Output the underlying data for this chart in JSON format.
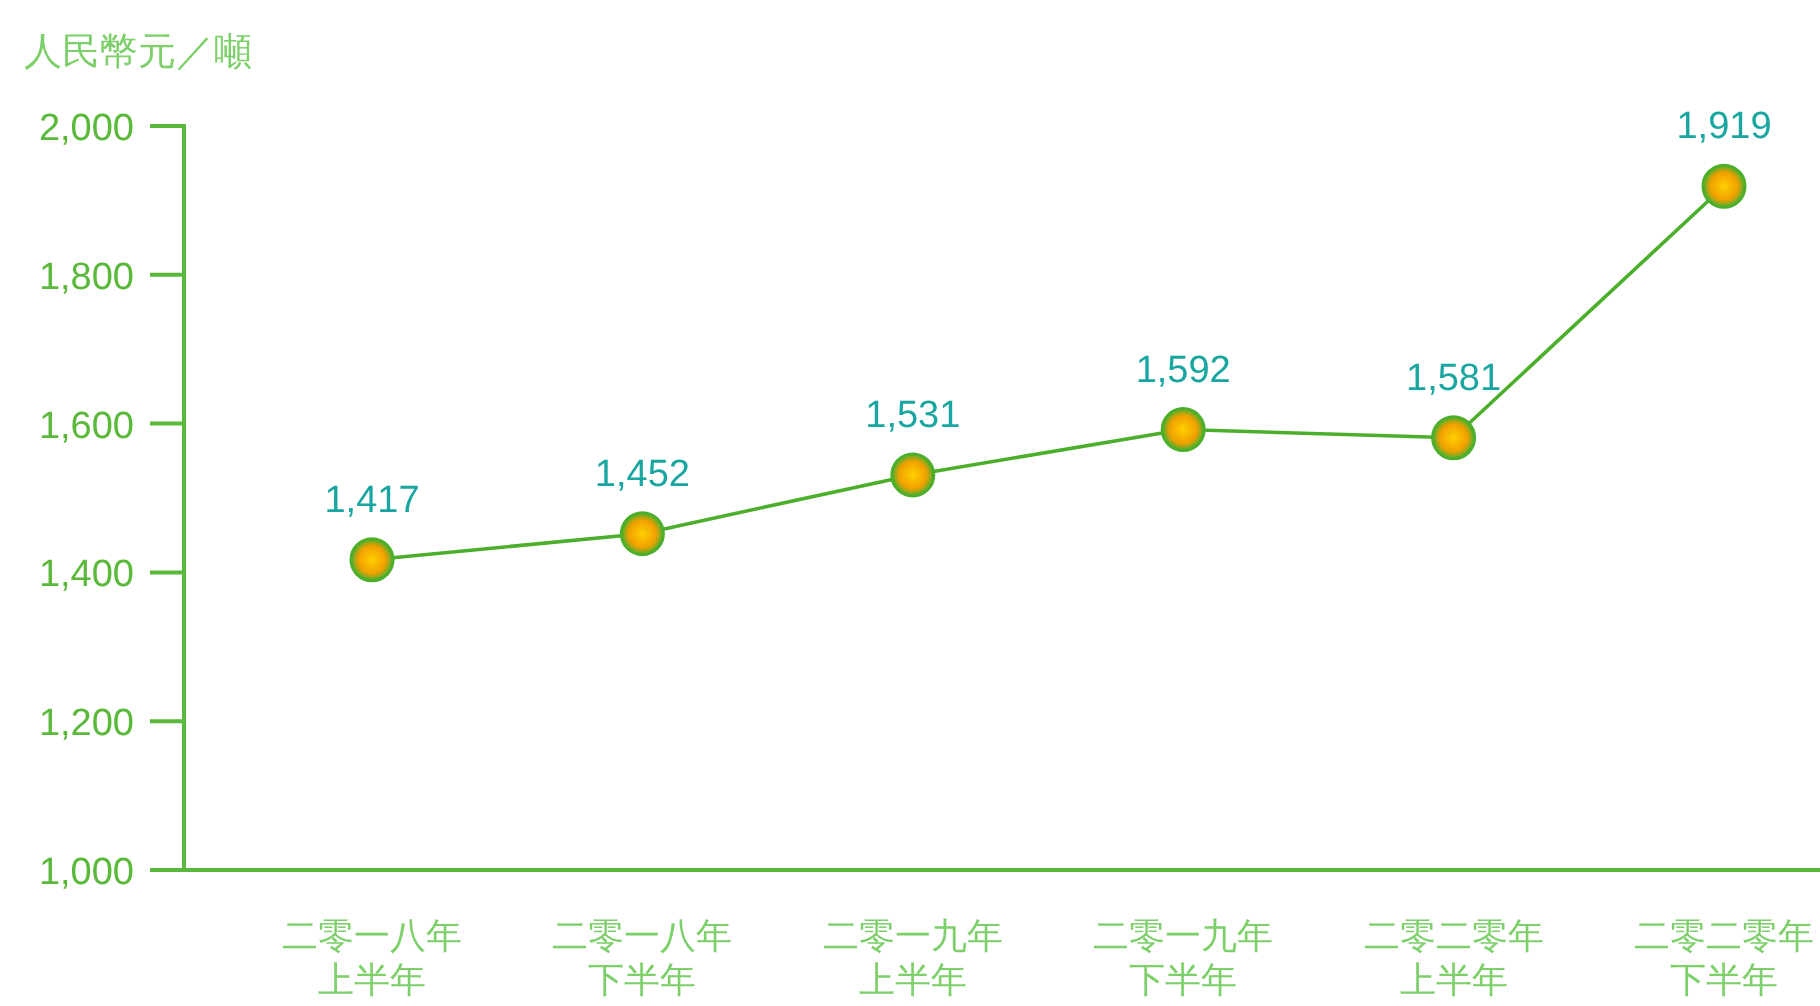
{
  "chart_data": {
    "type": "line",
    "ylabel": "人民幣元／噸",
    "categories": [
      "二零一八年上半年",
      "二零一八年下半年",
      "二零一九年上半年",
      "二零一九年下半年",
      "二零二零年上半年",
      "二零二零年下半年"
    ],
    "series": [
      {
        "color": "#4caf2c",
        "values": [
          1417,
          1452,
          1531,
          1592,
          1581,
          1919
        ],
        "value_labels": [
          "1,417",
          "1,452",
          "1,531",
          "1,592",
          "1,581",
          "1,919"
        ]
      }
    ],
    "ylim": [
      1000,
      2000
    ],
    "yticks": [
      {
        "value": 1000,
        "label": "1,000"
      },
      {
        "value": 1200,
        "label": "1,200"
      },
      {
        "value": 1400,
        "label": "1,400"
      },
      {
        "value": 1600,
        "label": "1,600"
      },
      {
        "value": 1800,
        "label": "1,800"
      },
      {
        "value": 2000,
        "label": "2,000"
      }
    ],
    "grid": false,
    "marker": "circle",
    "line_style": "solid"
  }
}
